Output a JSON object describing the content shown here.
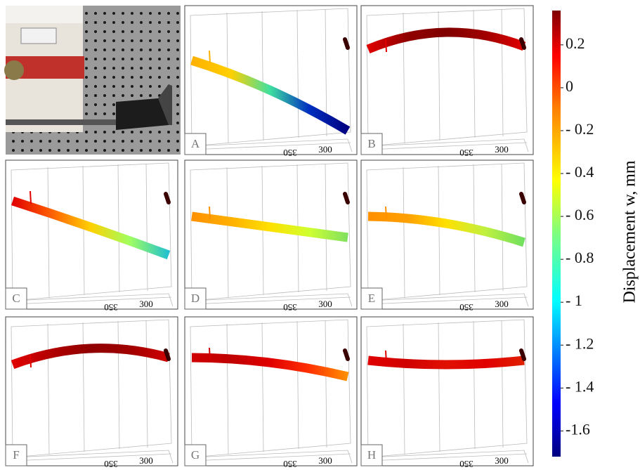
{
  "panels": [
    {
      "label": "A",
      "ticks": [
        "350",
        "300"
      ]
    },
    {
      "label": "B",
      "ticks": [
        "350",
        "300"
      ]
    },
    {
      "label": "C",
      "ticks": [
        "350",
        "300"
      ]
    },
    {
      "label": "D",
      "ticks": [
        "350",
        "300"
      ]
    },
    {
      "label": "E",
      "ticks": [
        "350",
        "300"
      ]
    },
    {
      "label": "F",
      "ticks": [
        "350",
        "300"
      ]
    },
    {
      "label": "G",
      "ticks": [
        "350",
        "300"
      ]
    },
    {
      "label": "H",
      "ticks": [
        "350",
        "300"
      ]
    }
  ],
  "colorbar": {
    "label": "Displacement w, mm",
    "lim": [
      -1.72,
      0.36
    ],
    "ticks": [
      0.2,
      0,
      {
        "value": -0.2,
        "label": "- 0.2"
      },
      {
        "value": -0.4,
        "label": "- 0.4"
      },
      {
        "value": -0.6,
        "label": "- 0.6"
      },
      {
        "value": -0.8,
        "label": "- 0.8"
      },
      {
        "value": -1,
        "label": "- 1"
      },
      {
        "value": -1.2,
        "label": "- 1.2"
      },
      {
        "value": -1.4,
        "label": "- 1.4"
      },
      {
        "value": -1.6,
        "label": "-1.6"
      }
    ]
  }
}
